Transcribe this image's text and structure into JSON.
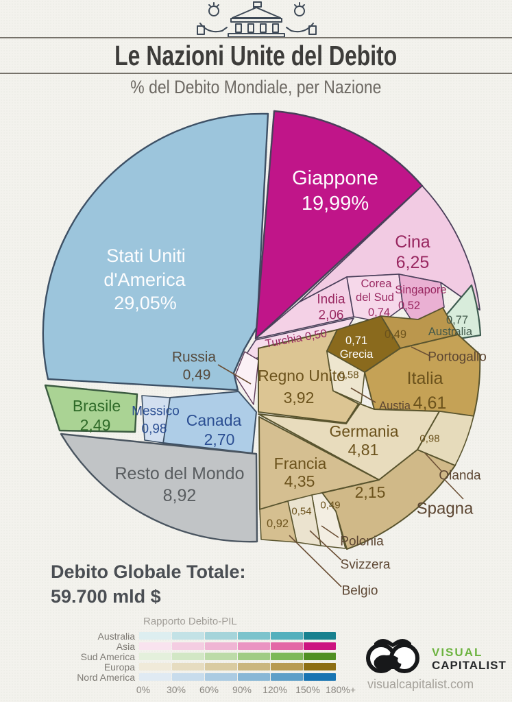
{
  "header": {
    "title": "Le Nazioni Unite del Debito",
    "subtitle": "% del Debito Mondiale, per Nazione"
  },
  "slices": {
    "usa": {
      "line1": "Stati Uniti",
      "line2": "d'America",
      "value": "29,05%"
    },
    "giappone": {
      "name": "Giappone",
      "value": "19,99%"
    },
    "cina": {
      "name": "Cina",
      "value": "6,25"
    },
    "india": {
      "name": "India",
      "value": "2,06"
    },
    "corea": {
      "line1": "Corea",
      "line2": "del Sud",
      "value": "0,74"
    },
    "singapore": {
      "name": "Singapore",
      "value": "0,52"
    },
    "turchia": {
      "label": "Turchia 0,50"
    },
    "russia": {
      "name": "Russia",
      "value": "0,49"
    },
    "grecia": {
      "value": "0,71",
      "name": "Grecia"
    },
    "portogallo": {
      "value": "0,49",
      "label": "Portogallo"
    },
    "austria": {
      "value": "0,58",
      "label": "Austia"
    },
    "regno_unito": {
      "name": "Regno Unito",
      "value": "3,92"
    },
    "italia": {
      "name": "Italia",
      "value": "4,61"
    },
    "germania": {
      "name": "Germania",
      "value": "4,81"
    },
    "francia": {
      "name": "Francia",
      "value": "4,35"
    },
    "spagna": {
      "value": "2,15",
      "label": "Spagna"
    },
    "olanda": {
      "value": "0,98",
      "label": "Olanda"
    },
    "belgio": {
      "value": "0,92",
      "label": "Belgio"
    },
    "polonia": {
      "value": "0,54",
      "label": "Polonia"
    },
    "svizzera": {
      "value": "0,49",
      "label": "Svizzera"
    },
    "brasile": {
      "name": "Brasile",
      "value": "2,49"
    },
    "messico": {
      "name": "Messico",
      "value": "0,98"
    },
    "canada": {
      "name": "Canada",
      "value": "2,70"
    },
    "resto": {
      "name": "Resto del Mondo",
      "value": "8,92"
    },
    "australia": {
      "value": "0,77",
      "name": "Australia"
    }
  },
  "totals": {
    "label": "Debito Globale Totale:",
    "value": "59.700 mld $"
  },
  "legend": {
    "title": "Rapporto Debito-PIL",
    "ticks": [
      "0%",
      "30%",
      "60%",
      "90%",
      "120%",
      "150%",
      "180%+"
    ],
    "rows": [
      {
        "name": "Australia",
        "colors": [
          "#ddeef0",
          "#c3e2e6",
          "#a5d4da",
          "#7cc3cc",
          "#54b0bd",
          "#19818f"
        ]
      },
      {
        "name": "Asia",
        "colors": [
          "#f9e3ef",
          "#f4cde2",
          "#efb5d4",
          "#ea94c2",
          "#e368a6",
          "#cc1480"
        ]
      },
      {
        "name": "Sud America",
        "colors": [
          "#e4f0dc",
          "#d2e7c5",
          "#bcdba8",
          "#a0cc84",
          "#7db958",
          "#4f8f22"
        ]
      },
      {
        "name": "Europa",
        "colors": [
          "#f0ead9",
          "#e6dcc0",
          "#d9cba1",
          "#cab67e",
          "#b89b52",
          "#8d6e14"
        ]
      },
      {
        "name": "Nord America",
        "colors": [
          "#e0eaf3",
          "#c8dcec",
          "#abcbe2",
          "#88b7d6",
          "#5e9fc8",
          "#1874b2"
        ]
      }
    ]
  },
  "brand": {
    "line1": "VISUAL",
    "line2": "CAPITALIST",
    "url": "visualcapitalist.com"
  },
  "chart_data": {
    "type": "pie",
    "title": "Le Nazioni Unite del Debito",
    "subtitle": "% del Debito Mondiale, per Nazione",
    "unit": "% del debito mondiale per nazione",
    "total": "Debito Globale Totale: 59.700 mld $",
    "legend_title": "Rapporto Debito-PIL",
    "legend_ticks": [
      "0%",
      "30%",
      "60%",
      "90%",
      "120%",
      "150%",
      "180%+"
    ],
    "groups": [
      {
        "region": "Nord America",
        "color": "#1874b2",
        "slices": [
          {
            "label": "Stati Uniti d'America",
            "value": 29.05,
            "fill": "#9cc5dc"
          },
          {
            "label": "Canada",
            "value": 2.7,
            "fill": "#aecde7"
          },
          {
            "label": "Messico",
            "value": 0.98,
            "fill": "#d2dff0"
          }
        ]
      },
      {
        "region": "Asia",
        "color": "#cc1480",
        "slices": [
          {
            "label": "Giappone",
            "value": 19.99,
            "fill": "#c01589"
          },
          {
            "label": "Cina",
            "value": 6.25,
            "fill": "#f2cbe3"
          },
          {
            "label": "India",
            "value": 2.06,
            "fill": "#f4d1e6"
          },
          {
            "label": "Corea del Sud",
            "value": 0.74,
            "fill": "#f6d8ea"
          },
          {
            "label": "Singapore",
            "value": 0.52,
            "fill": "#eab0d3"
          },
          {
            "label": "Turchia",
            "value": 0.5,
            "fill": "#f6dcec"
          },
          {
            "label": "Russia",
            "value": 0.49,
            "fill": "#fbf1f6"
          }
        ]
      },
      {
        "region": "Europa",
        "color": "#8d6e14",
        "slices": [
          {
            "label": "Germania",
            "value": 4.81,
            "fill": "#e8dcbd"
          },
          {
            "label": "Italia",
            "value": 4.61,
            "fill": "#c5a256"
          },
          {
            "label": "Francia",
            "value": 4.35,
            "fill": "#d5bf91"
          },
          {
            "label": "Regno Unito",
            "value": 3.92,
            "fill": "#dcc593"
          },
          {
            "label": "Spagna",
            "value": 2.15,
            "fill": "#d0b988"
          },
          {
            "label": "Olanda",
            "value": 0.98,
            "fill": "#e6dbbb"
          },
          {
            "label": "Belgio",
            "value": 0.92,
            "fill": "#d5bf90"
          },
          {
            "label": "Grecia",
            "value": 0.71,
            "fill": "#8a6a1d"
          },
          {
            "label": "Austria",
            "value": 0.58,
            "fill": "#eee6cf"
          },
          {
            "label": "Polonia",
            "value": 0.54,
            "fill": "#ebe3cf"
          },
          {
            "label": "Portogallo",
            "value": 0.49,
            "fill": "#bb974d"
          },
          {
            "label": "Svizzera",
            "value": 0.49,
            "fill": "#f3eee2"
          }
        ]
      },
      {
        "region": "Sud America",
        "color": "#4f8f22",
        "slices": [
          {
            "label": "Brasile",
            "value": 2.49,
            "fill": "#aad394"
          }
        ]
      },
      {
        "region": "Australia",
        "color": "#19818f",
        "slices": [
          {
            "label": "Australia",
            "value": 0.77,
            "fill": "#d8ecdb"
          }
        ]
      },
      {
        "region": "Resto del Mondo",
        "color": "#c1c4c6",
        "slices": [
          {
            "label": "Resto del Mondo",
            "value": 8.92,
            "fill": "#c1c4c6"
          }
        ]
      }
    ]
  }
}
